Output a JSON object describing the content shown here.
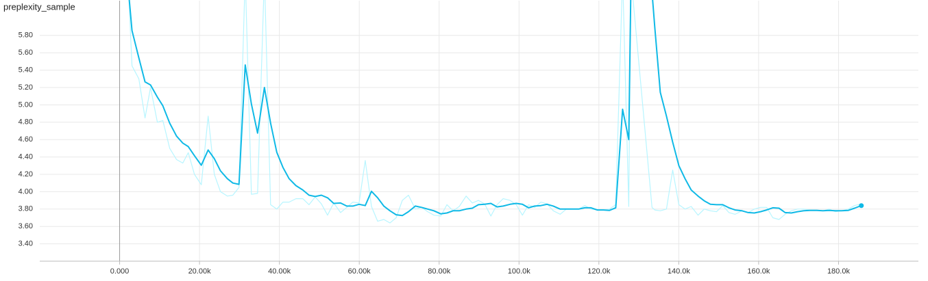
{
  "chart_data": {
    "type": "line",
    "title": "preplexity_sample",
    "x": [
      2233,
      3092,
      4810,
      6357,
      7731,
      9449,
      10824,
      12541,
      14259,
      15806,
      17180,
      18726,
      20445,
      22163,
      23709,
      25255,
      26973,
      28348,
      29894,
      31440,
      32986,
      34532,
      36250,
      37796,
      39342,
      40888,
      42434,
      44153,
      45870,
      47417,
      48963,
      50510,
      52056,
      53602,
      55320,
      56866,
      58412,
      59958,
      61504,
      63051,
      64597,
      66143,
      67689,
      69235,
      70781,
      72328,
      74046,
      75592,
      77138,
      78684,
      80402,
      81949,
      83495,
      85041,
      86759,
      88305,
      89851,
      91398,
      92944,
      94490,
      96036,
      97754,
      99300,
      100847,
      102393,
      103939,
      105485,
      107031,
      108578,
      110296,
      111842,
      113388,
      114934,
      116480,
      118027,
      119573,
      121119,
      122665,
      124211,
      125929,
      127476,
      128000,
      133300,
      134000,
      135378,
      136925,
      138471,
      140017,
      141563,
      143109,
      144827,
      146374,
      147920,
      149466,
      151012,
      152558,
      154105,
      155823,
      157369,
      158915,
      160461,
      162008,
      163554,
      165100,
      166646,
      168192,
      169738,
      171285,
      172831,
      174549,
      176095,
      177641,
      179188,
      180734,
      182452,
      183998,
      185716
    ],
    "series": [
      {
        "color": "#b7f5ff",
        "values": [
          6.3,
          5.45,
          5.3,
          4.85,
          5.2,
          4.8,
          4.82,
          4.5,
          4.37,
          4.33,
          4.45,
          4.2,
          4.08,
          4.87,
          4.2,
          4.0,
          3.95,
          3.96,
          4.05,
          6.5,
          3.97,
          3.98,
          6.5,
          3.85,
          3.8,
          3.88,
          3.88,
          3.92,
          3.92,
          3.85,
          3.94,
          3.86,
          3.73,
          3.87,
          3.76,
          3.82,
          3.88,
          3.87,
          4.36,
          3.83,
          3.66,
          3.68,
          3.64,
          3.7,
          3.9,
          3.96,
          3.8,
          3.82,
          3.77,
          3.73,
          3.72,
          3.85,
          3.78,
          3.83,
          3.95,
          3.87,
          3.9,
          3.86,
          3.72,
          3.85,
          3.92,
          3.9,
          3.85,
          3.73,
          3.85,
          3.82,
          3.88,
          3.86,
          3.78,
          3.74,
          3.8,
          3.8,
          3.8,
          3.84,
          3.8,
          3.79,
          3.79,
          3.8,
          3.85,
          6.5,
          3.83,
          6.5,
          3.82,
          3.79,
          3.78,
          3.8,
          4.25,
          3.85,
          3.8,
          3.83,
          3.73,
          3.8,
          3.78,
          3.77,
          3.84,
          3.76,
          3.74,
          3.78,
          3.76,
          3.8,
          3.82,
          3.82,
          3.7,
          3.68,
          3.74,
          3.78,
          3.8,
          3.8,
          3.79,
          3.79,
          3.78,
          3.8,
          3.77,
          3.78,
          3.8,
          3.84,
          3.86
        ]
      },
      {
        "color": "#0fb9e6",
        "values": [
          6.3,
          5.855,
          5.54,
          5.265,
          5.23,
          5.09,
          4.99,
          4.79,
          4.64,
          4.56,
          4.52,
          4.415,
          4.305,
          4.48,
          4.38,
          4.24,
          4.15,
          4.1,
          4.085,
          5.46,
          5.01,
          4.675,
          5.2,
          4.79,
          4.455,
          4.28,
          4.15,
          4.07,
          4.02,
          3.96,
          3.945,
          3.96,
          3.93,
          3.865,
          3.87,
          3.835,
          3.835,
          3.855,
          3.84,
          4.005,
          3.93,
          3.835,
          3.78,
          3.735,
          3.725,
          3.77,
          3.835,
          3.82,
          3.8,
          3.78,
          3.745,
          3.755,
          3.78,
          3.78,
          3.8,
          3.81,
          3.85,
          3.855,
          3.865,
          3.825,
          3.835,
          3.855,
          3.865,
          3.855,
          3.815,
          3.835,
          3.84,
          3.855,
          3.835,
          3.8,
          3.8,
          3.8,
          3.8,
          3.815,
          3.815,
          3.79,
          3.79,
          3.785,
          3.815,
          4.95,
          4.6,
          6.3,
          6.3,
          5.89,
          5.145,
          4.87,
          4.57,
          4.3,
          4.15,
          4.02,
          3.95,
          3.895,
          3.855,
          3.85,
          3.85,
          3.815,
          3.79,
          3.78,
          3.76,
          3.755,
          3.77,
          3.79,
          3.815,
          3.81,
          3.76,
          3.755,
          3.77,
          3.78,
          3.785,
          3.785,
          3.78,
          3.785,
          3.78,
          3.78,
          3.785,
          3.81,
          3.84
        ]
      }
    ],
    "xlim": [
      -20000,
      200000
    ],
    "xticks": [
      {
        "value": 0,
        "label": "0.000"
      },
      {
        "value": 20000,
        "label": "20.00k"
      },
      {
        "value": 40000,
        "label": "40.00k"
      },
      {
        "value": 60000,
        "label": "60.00k"
      },
      {
        "value": 80000,
        "label": "80.00k"
      },
      {
        "value": 100000,
        "label": "100.0k"
      },
      {
        "value": 120000,
        "label": "120.0k"
      },
      {
        "value": 140000,
        "label": "140.0k"
      },
      {
        "value": 160000,
        "label": "160.0k"
      },
      {
        "value": 180000,
        "label": "180.0k"
      }
    ],
    "ylim": [
      3.2,
      6.2
    ],
    "yticks": [
      {
        "value": 3.4,
        "label": "3.40"
      },
      {
        "value": 3.6,
        "label": "3.60"
      },
      {
        "value": 3.8,
        "label": "3.80"
      },
      {
        "value": 4.0,
        "label": "4.00"
      },
      {
        "value": 4.2,
        "label": "4.20"
      },
      {
        "value": 4.4,
        "label": "4.40"
      },
      {
        "value": 4.6,
        "label": "4.60"
      },
      {
        "value": 4.8,
        "label": "4.80"
      },
      {
        "value": 5.0,
        "label": "5.00"
      },
      {
        "value": 5.2,
        "label": "5.20"
      },
      {
        "value": 5.4,
        "label": "5.40"
      },
      {
        "value": 5.6,
        "label": "5.60"
      },
      {
        "value": 5.8,
        "label": "5.80"
      }
    ],
    "grid": true
  }
}
